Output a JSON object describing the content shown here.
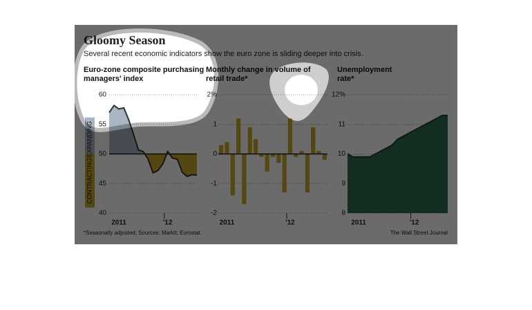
{
  "header": {
    "title": "Gloomy Season",
    "subtitle": "Several recent economic indicators show the euro zone is sliding deeper into crisis."
  },
  "chart_data": [
    {
      "type": "line",
      "title": "Euro-zone composite purchasing managers' index",
      "categories": [
        null,
        null,
        "2011",
        null,
        null,
        null,
        null,
        null,
        null,
        null,
        null,
        null,
        "'12",
        null,
        null,
        null,
        null,
        null,
        null
      ],
      "values": [
        57.0,
        58.2,
        57.6,
        57.8,
        55.8,
        53.3,
        50.7,
        50.4,
        49.1,
        46.8,
        47.2,
        48.3,
        50.4,
        49.3,
        49.1,
        46.9,
        46.2,
        46.5,
        46.4
      ],
      "ylim": [
        40,
        60
      ],
      "yticks": [
        40,
        45,
        50,
        55,
        60
      ],
      "baseline": 50,
      "annotations": [
        "EXPANDING",
        "CONTRACTING"
      ],
      "color": "#333333",
      "fill_above": "#a7b6c2",
      "fill_below": "#c9a92c",
      "grid": true
    },
    {
      "type": "bar",
      "title": "Monthly change in volume of retail trade*",
      "categories": [
        null,
        "2011",
        null,
        null,
        null,
        null,
        null,
        null,
        null,
        null,
        null,
        null,
        "'12",
        null,
        null,
        null,
        null,
        null,
        null
      ],
      "values": [
        0.3,
        0.4,
        -1.4,
        1.2,
        -1.7,
        0.9,
        0.5,
        -0.1,
        -0.6,
        -0.1,
        -0.3,
        -1.3,
        1.2,
        -0.1,
        0.1,
        -1.3,
        0.9,
        0.1,
        -0.2
      ],
      "ylim": [
        -2,
        2
      ],
      "yticks": [
        -2,
        -1,
        0,
        1,
        {
          "value": 2,
          "label": "2%"
        }
      ],
      "color": "#c9a92c",
      "grid": true
    },
    {
      "type": "area",
      "title": "Unemployment rate*",
      "categories": [
        null,
        null,
        "2011",
        null,
        null,
        null,
        null,
        null,
        null,
        null,
        null,
        null,
        "'12",
        null,
        null,
        null,
        null,
        null,
        null
      ],
      "values": [
        10.0,
        9.9,
        9.9,
        9.9,
        9.9,
        10.0,
        10.1,
        10.2,
        10.3,
        10.5,
        10.6,
        10.7,
        10.8,
        10.9,
        11.0,
        11.1,
        11.2,
        11.3,
        11.3
      ],
      "ylim": [
        8,
        12
      ],
      "yticks": [
        8,
        9,
        10,
        11,
        {
          "value": 12,
          "label": "12%"
        }
      ],
      "color": "#1f3d2c",
      "fill": "#2f6b4c",
      "grid": true
    }
  ],
  "footer": {
    "note": "*Seasonally adjusted; Sources: Markit; Eurostat",
    "source": "The Wall Street Journal"
  }
}
